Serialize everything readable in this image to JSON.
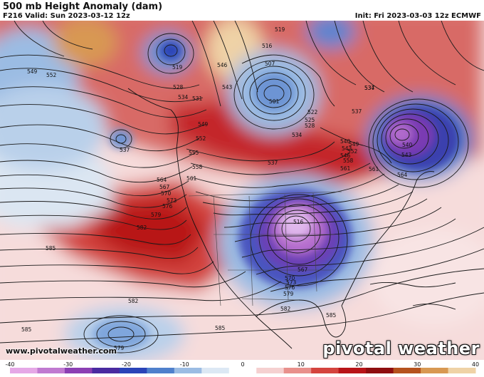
{
  "header": {
    "title": "500 mb Height Anomaly (dam)",
    "valid": "F216 Valid: Sun 2023-03-12 12z",
    "init": "Init: Fri 2023-03-03 12z ECMWF"
  },
  "footer": {
    "website": "www.pivotalweather.com",
    "brand": "pivotal weather"
  },
  "colorbar": {
    "ticks": [
      "-40",
      "-30",
      "-20",
      "-10",
      "0",
      "10",
      "20",
      "30",
      "40"
    ],
    "min": -40,
    "max": 40,
    "colors": [
      "#e5a8e6",
      "#c07ad0",
      "#8b3fb3",
      "#4a2aa0",
      "#2a44b8",
      "#4f80cc",
      "#9bbce3",
      "#dce8f4",
      "#ffffff",
      "#f5d0d0",
      "#e8908c",
      "#d4443e",
      "#b81418",
      "#8e0e10",
      "#b5521e",
      "#d89852",
      "#efd2a6"
    ]
  },
  "contour_labels": [
    {
      "text": "549"
    },
    {
      "text": "552"
    },
    {
      "text": "537"
    },
    {
      "text": "519"
    },
    {
      "text": "528"
    },
    {
      "text": "531"
    },
    {
      "text": "534"
    },
    {
      "text": "543"
    },
    {
      "text": "546"
    },
    {
      "text": "549"
    },
    {
      "text": "552"
    },
    {
      "text": "555"
    },
    {
      "text": "558"
    },
    {
      "text": "561"
    },
    {
      "text": "564"
    },
    {
      "text": "567"
    },
    {
      "text": "570"
    },
    {
      "text": "573"
    },
    {
      "text": "576"
    },
    {
      "text": "579"
    },
    {
      "text": "582"
    },
    {
      "text": "585"
    },
    {
      "text": "519"
    },
    {
      "text": "516"
    },
    {
      "text": "507"
    },
    {
      "text": "501"
    },
    {
      "text": "522"
    },
    {
      "text": "525"
    },
    {
      "text": "528"
    },
    {
      "text": "537"
    },
    {
      "text": "534"
    },
    {
      "text": "540"
    },
    {
      "text": "543"
    },
    {
      "text": "546"
    },
    {
      "text": "549"
    },
    {
      "text": "552"
    },
    {
      "text": "558"
    },
    {
      "text": "561"
    },
    {
      "text": "564"
    },
    {
      "text": "537"
    },
    {
      "text": "534"
    },
    {
      "text": "516"
    },
    {
      "text": "537"
    },
    {
      "text": "540"
    },
    {
      "text": "543"
    },
    {
      "text": "561"
    },
    {
      "text": "567"
    },
    {
      "text": "570"
    },
    {
      "text": "573"
    },
    {
      "text": "576"
    },
    {
      "text": "579"
    },
    {
      "text": "582"
    },
    {
      "text": "585"
    },
    {
      "text": "582"
    },
    {
      "text": "585"
    },
    {
      "text": "585"
    },
    {
      "text": "579"
    }
  ],
  "colors": {
    "background": "#ffffff",
    "contour": "#1a1a1a",
    "coastline": "#111111",
    "border": "#444444"
  }
}
